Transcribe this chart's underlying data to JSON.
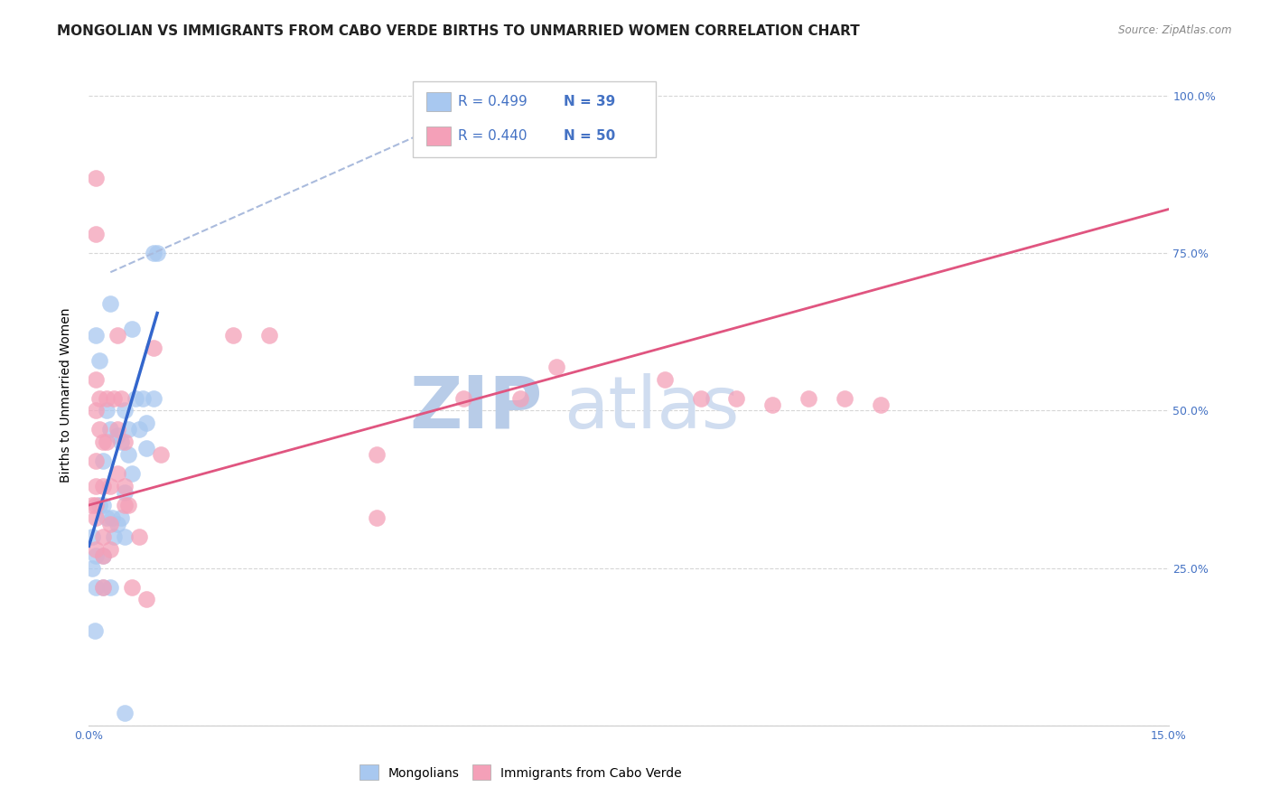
{
  "title": "MONGOLIAN VS IMMIGRANTS FROM CABO VERDE BIRTHS TO UNMARRIED WOMEN CORRELATION CHART",
  "source": "Source: ZipAtlas.com",
  "ylabel_label": "Births to Unmarried Women",
  "x_min": 0.0,
  "x_max": 0.15,
  "y_min": 0.0,
  "y_max": 1.05,
  "x_ticks": [
    0.0,
    0.025,
    0.05,
    0.075,
    0.1,
    0.125,
    0.15
  ],
  "y_ticks": [
    0.0,
    0.25,
    0.5,
    0.75,
    1.0
  ],
  "blue_color": "#a8c8f0",
  "pink_color": "#f4a0b8",
  "blue_line_color": "#3366cc",
  "pink_line_color": "#e05580",
  "dashed_line_color": "#aabbdd",
  "axis_color": "#4472c4",
  "grid_color": "#cccccc",
  "legend_R_blue": "R = 0.499",
  "legend_N_blue": "N = 39",
  "legend_R_pink": "R = 0.440",
  "legend_N_pink": "N = 50",
  "mongolians_scatter": [
    [
      0.0005,
      0.3
    ],
    [
      0.001,
      0.62
    ],
    [
      0.0015,
      0.58
    ],
    [
      0.002,
      0.35
    ],
    [
      0.002,
      0.27
    ],
    [
      0.0025,
      0.5
    ],
    [
      0.0025,
      0.33
    ],
    [
      0.003,
      0.67
    ],
    [
      0.003,
      0.47
    ],
    [
      0.0032,
      0.33
    ],
    [
      0.0035,
      0.3
    ],
    [
      0.004,
      0.46
    ],
    [
      0.004,
      0.32
    ],
    [
      0.0045,
      0.45
    ],
    [
      0.0045,
      0.33
    ],
    [
      0.005,
      0.5
    ],
    [
      0.005,
      0.37
    ],
    [
      0.005,
      0.3
    ],
    [
      0.0055,
      0.47
    ],
    [
      0.0055,
      0.43
    ],
    [
      0.006,
      0.4
    ],
    [
      0.006,
      0.63
    ],
    [
      0.0065,
      0.52
    ],
    [
      0.007,
      0.47
    ],
    [
      0.0075,
      0.52
    ],
    [
      0.008,
      0.48
    ],
    [
      0.008,
      0.44
    ],
    [
      0.009,
      0.52
    ],
    [
      0.009,
      0.75
    ],
    [
      0.0095,
      0.75
    ],
    [
      0.001,
      0.22
    ],
    [
      0.002,
      0.22
    ],
    [
      0.003,
      0.22
    ],
    [
      0.0005,
      0.25
    ],
    [
      0.001,
      0.27
    ],
    [
      0.0015,
      0.35
    ],
    [
      0.002,
      0.42
    ],
    [
      0.0008,
      0.15
    ],
    [
      0.005,
      0.02
    ]
  ],
  "cabo_verde_scatter": [
    [
      0.0005,
      0.35
    ],
    [
      0.001,
      0.87
    ],
    [
      0.001,
      0.78
    ],
    [
      0.001,
      0.55
    ],
    [
      0.001,
      0.5
    ],
    [
      0.001,
      0.42
    ],
    [
      0.001,
      0.38
    ],
    [
      0.001,
      0.35
    ],
    [
      0.001,
      0.33
    ],
    [
      0.001,
      0.28
    ],
    [
      0.0015,
      0.52
    ],
    [
      0.0015,
      0.47
    ],
    [
      0.002,
      0.45
    ],
    [
      0.002,
      0.38
    ],
    [
      0.002,
      0.3
    ],
    [
      0.002,
      0.27
    ],
    [
      0.002,
      0.22
    ],
    [
      0.0025,
      0.52
    ],
    [
      0.0025,
      0.45
    ],
    [
      0.003,
      0.38
    ],
    [
      0.003,
      0.32
    ],
    [
      0.003,
      0.28
    ],
    [
      0.0035,
      0.52
    ],
    [
      0.004,
      0.47
    ],
    [
      0.004,
      0.4
    ],
    [
      0.004,
      0.62
    ],
    [
      0.0045,
      0.52
    ],
    [
      0.005,
      0.45
    ],
    [
      0.005,
      0.38
    ],
    [
      0.005,
      0.35
    ],
    [
      0.0055,
      0.35
    ],
    [
      0.006,
      0.22
    ],
    [
      0.007,
      0.3
    ],
    [
      0.008,
      0.2
    ],
    [
      0.009,
      0.6
    ],
    [
      0.01,
      0.43
    ],
    [
      0.02,
      0.62
    ],
    [
      0.025,
      0.62
    ],
    [
      0.04,
      0.43
    ],
    [
      0.04,
      0.33
    ],
    [
      0.052,
      0.52
    ],
    [
      0.06,
      0.52
    ],
    [
      0.065,
      0.57
    ],
    [
      0.08,
      0.55
    ],
    [
      0.085,
      0.52
    ],
    [
      0.09,
      0.52
    ],
    [
      0.095,
      0.51
    ],
    [
      0.1,
      0.52
    ],
    [
      0.105,
      0.52
    ],
    [
      0.11,
      0.51
    ]
  ],
  "blue_trend_x": [
    0.0,
    0.0095
  ],
  "blue_trend_y": [
    0.285,
    0.655
  ],
  "pink_trend_x": [
    0.0,
    0.15
  ],
  "pink_trend_y": [
    0.35,
    0.82
  ],
  "dashed_trend_x": [
    0.003,
    0.062
  ],
  "dashed_trend_y": [
    0.72,
    1.02
  ],
  "watermark_zip": "ZIP",
  "watermark_atlas": "atlas",
  "watermark_color": "#c8d8f0",
  "title_fontsize": 11,
  "axis_label_fontsize": 10,
  "tick_fontsize": 9,
  "legend_fontsize": 11
}
